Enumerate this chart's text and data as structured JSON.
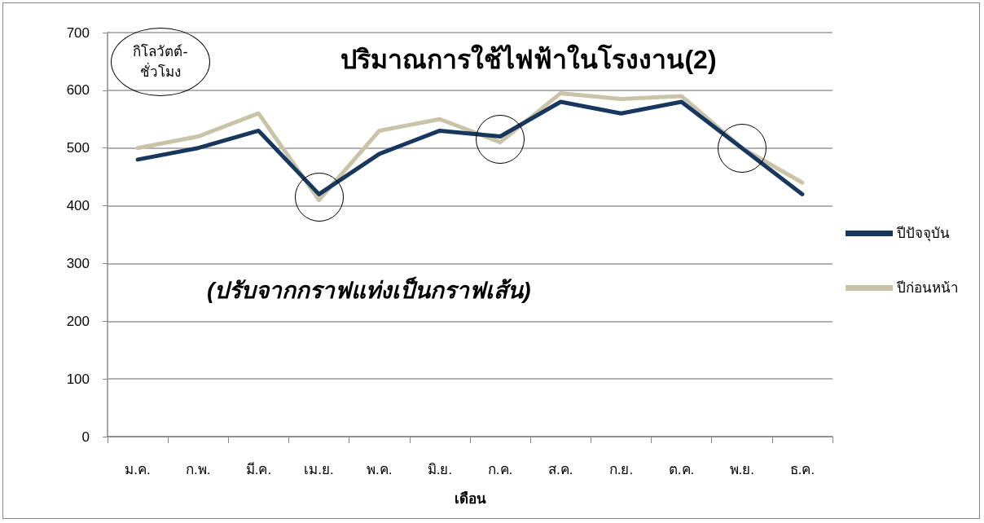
{
  "chart_data": {
    "type": "line",
    "title": "ปริมาณการใช้ไฟฟ้าในโรงงาน(2)",
    "xlabel": "เดือน",
    "ylabel": "กิโลวัตต์-ชั่วโมง",
    "annotations": [
      "(ปรับจากกราฟแท่งเป็นกราฟเส้น)"
    ],
    "categories": [
      "ม.ค.",
      "ก.พ.",
      "มี.ค.",
      "เม.ย.",
      "พ.ค.",
      "มิ.ย.",
      "ก.ค.",
      "ส.ค.",
      "ก.ย.",
      "ต.ค.",
      "พ.ย.",
      "ธ.ค."
    ],
    "series": [
      {
        "name": "ปีปัจจุบัน",
        "color": "#17375e",
        "values": [
          480,
          500,
          530,
          420,
          490,
          530,
          520,
          580,
          560,
          580,
          500,
          420
        ]
      },
      {
        "name": "ปีก่อนหน้า",
        "color": "#c9c4a8",
        "values": [
          500,
          520,
          560,
          410,
          530,
          550,
          510,
          595,
          585,
          590,
          500,
          440
        ]
      }
    ],
    "ylim": [
      0,
      700
    ],
    "yticks": [
      0,
      100,
      200,
      300,
      400,
      500,
      600,
      700
    ],
    "grid": "y",
    "legend": "right",
    "marker": "none",
    "line_style": "solid"
  }
}
